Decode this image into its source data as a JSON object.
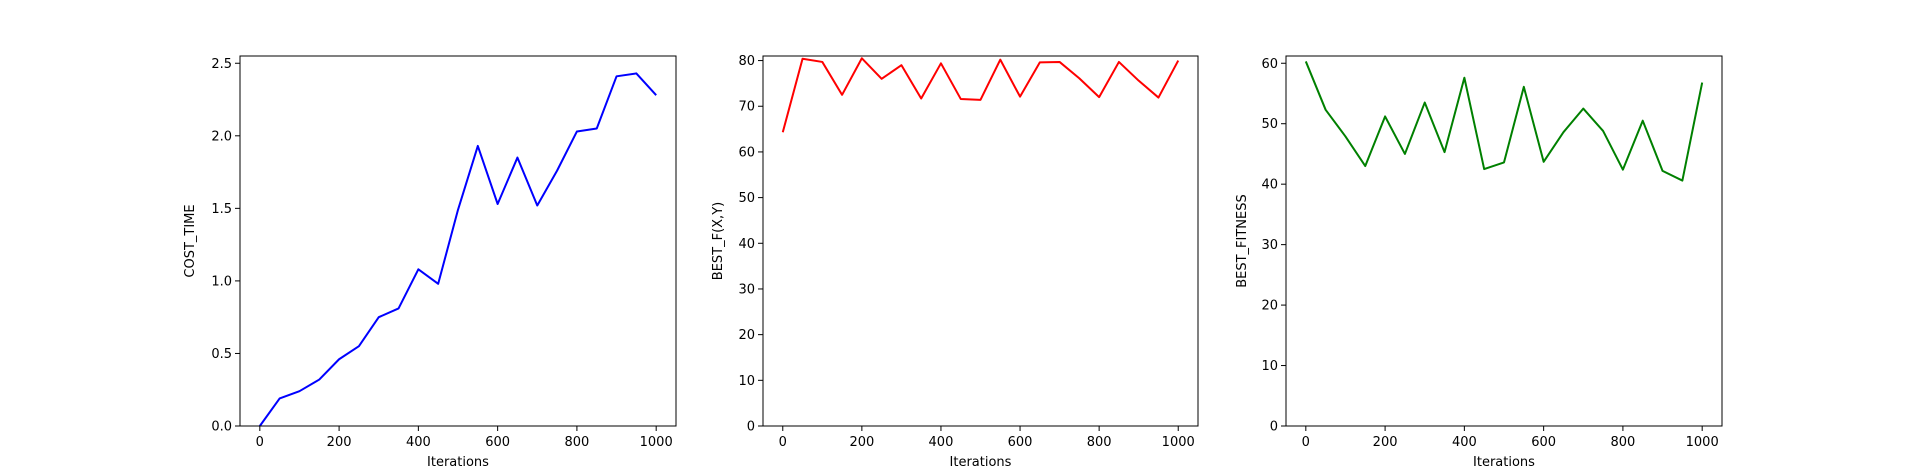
{
  "chart_data": [
    {
      "type": "line",
      "title": "",
      "xlabel": "Iterations",
      "ylabel": "COST_TIME",
      "xlim": [
        -50,
        1050
      ],
      "ylim": [
        0,
        2.55
      ],
      "xticks": [
        0,
        200,
        400,
        600,
        800,
        1000
      ],
      "yticks": [
        0.0,
        0.5,
        1.0,
        1.5,
        2.0,
        2.5
      ],
      "ytick_labels": [
        "0.0",
        "0.5",
        "1.0",
        "1.5",
        "2.0",
        "2.5"
      ],
      "grid": false,
      "x": [
        0,
        50,
        100,
        150,
        200,
        250,
        300,
        350,
        400,
        450,
        500,
        550,
        600,
        650,
        700,
        750,
        800,
        850,
        900,
        950,
        1000
      ],
      "series": [
        {
          "color": "#0000ff",
          "values": [
            0.0,
            0.19,
            0.24,
            0.32,
            0.46,
            0.55,
            0.75,
            0.81,
            1.08,
            0.98,
            1.49,
            1.93,
            1.53,
            1.85,
            1.52,
            1.76,
            2.03,
            2.05,
            2.41,
            2.43,
            2.28
          ]
        }
      ]
    },
    {
      "type": "line",
      "title": "",
      "xlabel": "Iterations",
      "ylabel": "BEST_F(X,Y)",
      "xlim": [
        -50,
        1050
      ],
      "ylim": [
        0,
        81
      ],
      "xticks": [
        0,
        200,
        400,
        600,
        800,
        1000
      ],
      "yticks": [
        0,
        10,
        20,
        30,
        40,
        50,
        60,
        70,
        80
      ],
      "ytick_labels": [
        "0",
        "10",
        "20",
        "30",
        "40",
        "50",
        "60",
        "70",
        "80"
      ],
      "grid": false,
      "x": [
        0,
        50,
        100,
        150,
        200,
        250,
        300,
        350,
        400,
        450,
        500,
        550,
        600,
        650,
        700,
        750,
        800,
        850,
        900,
        950,
        1000
      ],
      "series": [
        {
          "color": "#ff0000",
          "values": [
            64.3,
            80.4,
            79.7,
            72.5,
            80.5,
            76.0,
            79.0,
            71.7,
            79.4,
            71.6,
            71.4,
            80.2,
            72.1,
            79.6,
            79.7,
            76.1,
            72.0,
            79.7,
            75.6,
            71.9,
            80.0
          ]
        }
      ]
    },
    {
      "type": "line",
      "title": "",
      "xlabel": "Iterations",
      "ylabel": "BEST_FITNESS",
      "xlim": [
        -50,
        1050
      ],
      "ylim": [
        0,
        61.2
      ],
      "xticks": [
        0,
        200,
        400,
        600,
        800,
        1000
      ],
      "yticks": [
        0,
        10,
        20,
        30,
        40,
        50,
        60
      ],
      "ytick_labels": [
        "0",
        "10",
        "20",
        "30",
        "40",
        "50",
        "60"
      ],
      "grid": false,
      "x": [
        0,
        50,
        100,
        150,
        200,
        250,
        300,
        350,
        400,
        450,
        500,
        550,
        600,
        650,
        700,
        750,
        800,
        850,
        900,
        950,
        1000
      ],
      "series": [
        {
          "color": "#008000",
          "values": [
            60.3,
            52.3,
            47.9,
            43.0,
            51.2,
            45.0,
            53.5,
            45.3,
            57.6,
            42.5,
            43.6,
            56.1,
            43.7,
            48.6,
            52.5,
            48.8,
            42.4,
            50.5,
            42.2,
            40.6,
            56.8
          ]
        }
      ]
    }
  ]
}
